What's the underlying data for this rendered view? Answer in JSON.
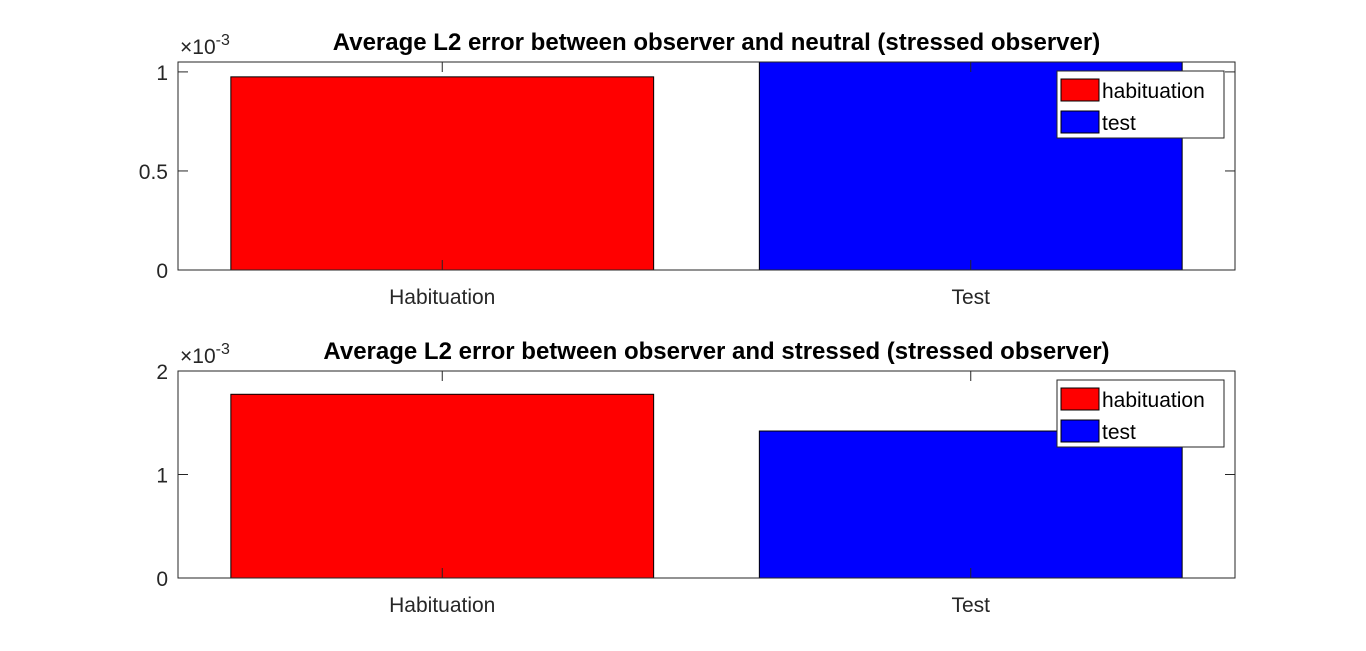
{
  "chart_data": [
    {
      "type": "bar",
      "title": "Average L2 error between observer and neutral (stressed observer)",
      "categories": [
        "Habituation",
        "Test"
      ],
      "series": [
        {
          "name": "habituation",
          "values": [
            0.000975,
            null
          ],
          "color": "#ff0000"
        },
        {
          "name": "test",
          "values": [
            null,
            0.00106
          ],
          "color": "#0000ff"
        }
      ],
      "ylim": [
        0,
        0.00105
      ],
      "yticks": [
        0,
        0.0005,
        0.001
      ],
      "ytick_labels": [
        "0",
        "0.5",
        "1"
      ],
      "y_exponent_label": "×10",
      "y_exponent": "-3",
      "xlabel": "",
      "ylabel": "",
      "legend_position": "top-right",
      "grid": false
    },
    {
      "type": "bar",
      "title": "Average L2 error between observer and stressed (stressed observer)",
      "categories": [
        "Habituation",
        "Test"
      ],
      "series": [
        {
          "name": "habituation",
          "values": [
            0.001775,
            null
          ],
          "color": "#ff0000"
        },
        {
          "name": "test",
          "values": [
            null,
            0.00142
          ],
          "color": "#0000ff"
        }
      ],
      "ylim": [
        0,
        0.002
      ],
      "yticks": [
        0,
        0.001,
        0.002
      ],
      "ytick_labels": [
        "0",
        "1",
        "2"
      ],
      "y_exponent_label": "×10",
      "y_exponent": "-3",
      "xlabel": "",
      "ylabel": "",
      "legend_position": "top-right",
      "grid": false
    }
  ]
}
